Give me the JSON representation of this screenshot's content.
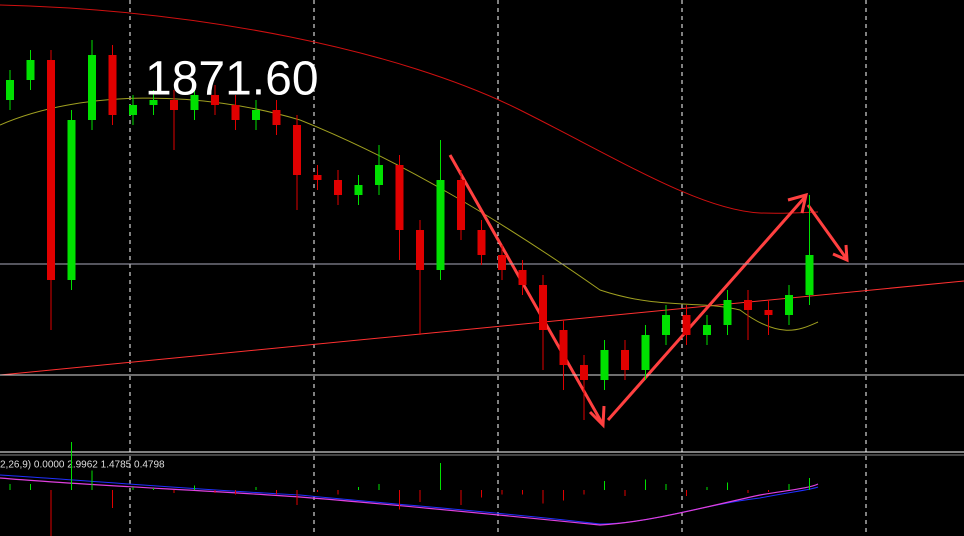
{
  "chart_data": {
    "type": "candlestick",
    "price_label": "1871.60",
    "price_line": 1871.6,
    "support_line": 1866.05,
    "indicator_label": "2,26,9) 0.0000 2.9962 1.4785 0.4798",
    "up_color": "#00e000",
    "down_color": "#e00000",
    "ylim": [
      1862.3,
      1884.8
    ],
    "open": [
      1879.8,
      1880.8,
      1881.8,
      1870.8,
      1878.8,
      1882.05,
      1879.05,
      1879.55,
      1879.8,
      1879.3,
      1880.05,
      1879.55,
      1878.8,
      1879.3,
      1878.55,
      1876.05,
      1875.8,
      1875.05,
      1875.55,
      1876.55,
      1873.3,
      1871.3,
      1875.8,
      1873.3,
      1872.05,
      1871.3,
      1870.55,
      1868.3,
      1866.55,
      1865.8,
      1867.3,
      1866.3,
      1868.05,
      1869.05,
      1868.05,
      1868.55,
      1869.8,
      1869.3,
      1869.05,
      1870.05
    ],
    "high": [
      1881.3,
      1882.3,
      1882.3,
      1879.3,
      1882.8,
      1882.55,
      1880.05,
      1880.3,
      1880.3,
      1880.55,
      1880.55,
      1880.05,
      1879.8,
      1879.8,
      1879.05,
      1876.55,
      1876.3,
      1876.05,
      1877.55,
      1877.05,
      1873.8,
      1877.8,
      1876.3,
      1873.8,
      1872.55,
      1871.8,
      1871.05,
      1868.8,
      1867.05,
      1867.8,
      1867.8,
      1868.55,
      1869.55,
      1869.55,
      1869.05,
      1870.3,
      1870.3,
      1869.8,
      1870.55,
      1875.05
    ],
    "low": [
      1879.3,
      1880.3,
      1868.3,
      1870.3,
      1878.3,
      1878.55,
      1878.55,
      1879.05,
      1877.3,
      1878.8,
      1879.05,
      1878.3,
      1878.3,
      1878.05,
      1874.3,
      1875.3,
      1874.55,
      1874.55,
      1875.05,
      1871.8,
      1868.05,
      1870.8,
      1872.8,
      1871.55,
      1870.8,
      1870.05,
      1866.3,
      1865.3,
      1863.8,
      1865.3,
      1865.8,
      1865.8,
      1867.55,
      1867.55,
      1867.55,
      1868.05,
      1867.8,
      1868.05,
      1868.55,
      1869.55
    ],
    "close": [
      1880.8,
      1881.8,
      1870.8,
      1878.8,
      1882.05,
      1879.05,
      1879.55,
      1879.8,
      1879.3,
      1880.05,
      1879.55,
      1878.8,
      1879.3,
      1878.55,
      1876.05,
      1875.8,
      1875.05,
      1875.55,
      1876.55,
      1873.3,
      1871.3,
      1875.8,
      1873.3,
      1872.05,
      1871.3,
      1870.55,
      1868.3,
      1866.55,
      1865.8,
      1867.3,
      1866.3,
      1868.05,
      1869.05,
      1868.05,
      1868.55,
      1869.8,
      1869.3,
      1869.05,
      1870.05,
      1872.05
    ]
  }
}
